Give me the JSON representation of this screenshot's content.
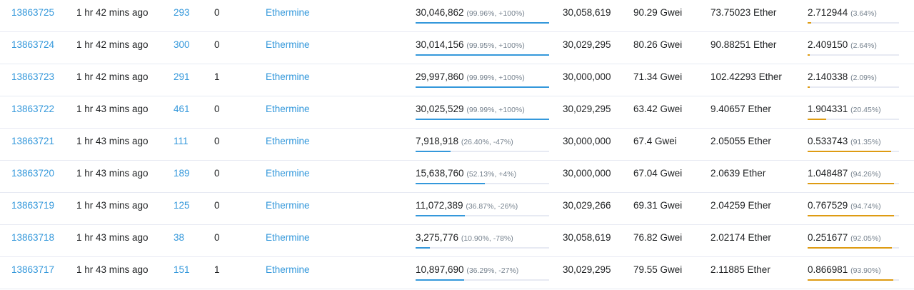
{
  "colors": {
    "link": "#3498db",
    "gas_bar": "#3498db",
    "burnt_bar": "#de9b12",
    "bar_track": "#e7eaf3",
    "divider": "#e7eaf3"
  },
  "rows": [
    {
      "block": "13863725",
      "age": "1 hr 42 mins ago",
      "txn": "293",
      "uncles": "0",
      "miner": "Ethermine",
      "gas_used": "30,046,862",
      "gas_used_detail": "(99.96%, +100%)",
      "gas_used_pct": 99.96,
      "gas_limit": "30,058,619",
      "base_fee": "90.29 Gwei",
      "reward": "73.75023 Ether",
      "burnt": "2.712944",
      "burnt_detail": "(3.64%)",
      "burnt_pct": 3.64
    },
    {
      "block": "13863724",
      "age": "1 hr 42 mins ago",
      "txn": "300",
      "uncles": "0",
      "miner": "Ethermine",
      "gas_used": "30,014,156",
      "gas_used_detail": "(99.95%, +100%)",
      "gas_used_pct": 99.95,
      "gas_limit": "30,029,295",
      "base_fee": "80.26 Gwei",
      "reward": "90.88251 Ether",
      "burnt": "2.409150",
      "burnt_detail": "(2.64%)",
      "burnt_pct": 2.64
    },
    {
      "block": "13863723",
      "age": "1 hr 42 mins ago",
      "txn": "291",
      "uncles": "1",
      "miner": "Ethermine",
      "gas_used": "29,997,860",
      "gas_used_detail": "(99.99%, +100%)",
      "gas_used_pct": 99.99,
      "gas_limit": "30,000,000",
      "base_fee": "71.34 Gwei",
      "reward": "102.42293 Ether",
      "burnt": "2.140338",
      "burnt_detail": "(2.09%)",
      "burnt_pct": 2.09
    },
    {
      "block": "13863722",
      "age": "1 hr 43 mins ago",
      "txn": "461",
      "uncles": "0",
      "miner": "Ethermine",
      "gas_used": "30,025,529",
      "gas_used_detail": "(99.99%, +100%)",
      "gas_used_pct": 99.99,
      "gas_limit": "30,029,295",
      "base_fee": "63.42 Gwei",
      "reward": "9.40657 Ether",
      "burnt": "1.904331",
      "burnt_detail": "(20.45%)",
      "burnt_pct": 20.45
    },
    {
      "block": "13863721",
      "age": "1 hr 43 mins ago",
      "txn": "111",
      "uncles": "0",
      "miner": "Ethermine",
      "gas_used": "7,918,918",
      "gas_used_detail": "(26.40%, -47%)",
      "gas_used_pct": 26.4,
      "gas_limit": "30,000,000",
      "base_fee": "67.4 Gwei",
      "reward": "2.05055 Ether",
      "burnt": "0.533743",
      "burnt_detail": "(91.35%)",
      "burnt_pct": 91.35
    },
    {
      "block": "13863720",
      "age": "1 hr 43 mins ago",
      "txn": "189",
      "uncles": "0",
      "miner": "Ethermine",
      "gas_used": "15,638,760",
      "gas_used_detail": "(52.13%, +4%)",
      "gas_used_pct": 52.13,
      "gas_limit": "30,000,000",
      "base_fee": "67.04 Gwei",
      "reward": "2.0639 Ether",
      "burnt": "1.048487",
      "burnt_detail": "(94.26%)",
      "burnt_pct": 94.26
    },
    {
      "block": "13863719",
      "age": "1 hr 43 mins ago",
      "txn": "125",
      "uncles": "0",
      "miner": "Ethermine",
      "gas_used": "11,072,389",
      "gas_used_detail": "(36.87%, -26%)",
      "gas_used_pct": 36.87,
      "gas_limit": "30,029,266",
      "base_fee": "69.31 Gwei",
      "reward": "2.04259 Ether",
      "burnt": "0.767529",
      "burnt_detail": "(94.74%)",
      "burnt_pct": 94.74
    },
    {
      "block": "13863718",
      "age": "1 hr 43 mins ago",
      "txn": "38",
      "uncles": "0",
      "miner": "Ethermine",
      "gas_used": "3,275,776",
      "gas_used_detail": "(10.90%, -78%)",
      "gas_used_pct": 10.9,
      "gas_limit": "30,058,619",
      "base_fee": "76.82 Gwei",
      "reward": "2.02174 Ether",
      "burnt": "0.251677",
      "burnt_detail": "(92.05%)",
      "burnt_pct": 92.05
    },
    {
      "block": "13863717",
      "age": "1 hr 43 mins ago",
      "txn": "151",
      "uncles": "1",
      "miner": "Ethermine",
      "gas_used": "10,897,690",
      "gas_used_detail": "(36.29%, -27%)",
      "gas_used_pct": 36.29,
      "gas_limit": "30,029,295",
      "base_fee": "79.55 Gwei",
      "reward": "2.11885 Ether",
      "burnt": "0.866981",
      "burnt_detail": "(93.90%)",
      "burnt_pct": 93.9
    }
  ]
}
